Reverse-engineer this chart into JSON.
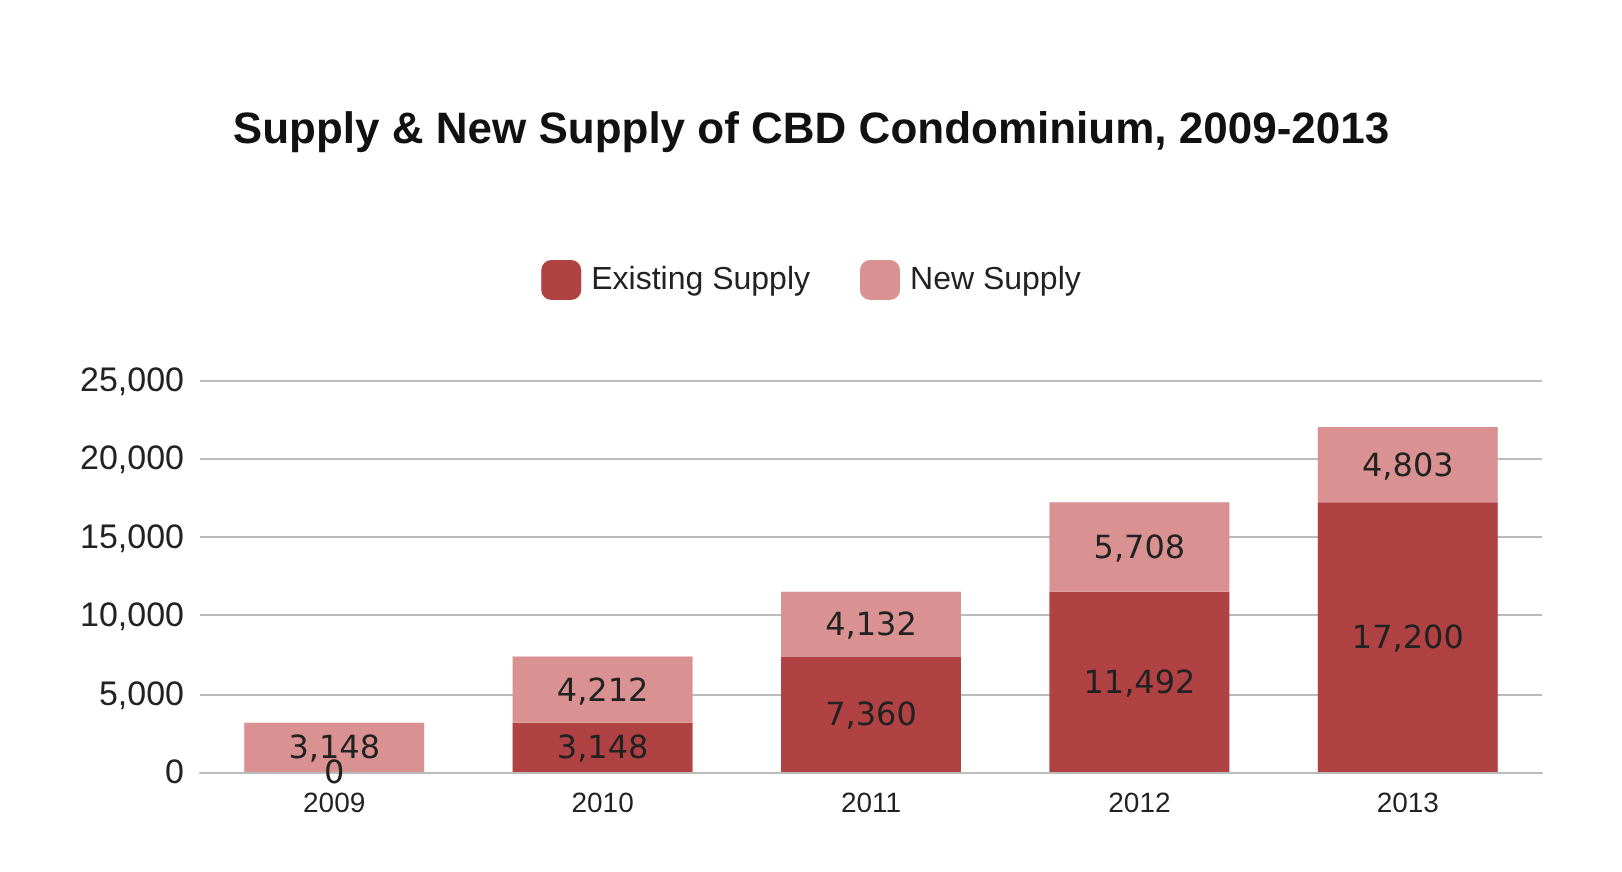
{
  "chart_data": {
    "type": "bar",
    "title": "Supply & New Supply of CBD Condominium, 2009-2013",
    "categories": [
      "2009",
      "2010",
      "2011",
      "2012",
      "2013"
    ],
    "stacked": true,
    "series": [
      {
        "name": "Existing Supply",
        "color": "#b04244",
        "values": [
          0,
          3148,
          7360,
          11492,
          17200
        ],
        "value_labels": [
          "0",
          "3,148",
          "7,360",
          "11,492",
          "17,200"
        ]
      },
      {
        "name": "New Supply",
        "color": "#d99291",
        "values": [
          3148,
          4212,
          4132,
          5708,
          4803
        ],
        "value_labels": [
          "3,148",
          "4,212",
          "4,132",
          "5,708",
          "4,803"
        ]
      }
    ],
    "ylim": [
      0,
      25000
    ],
    "yticks": [
      0,
      {
        "value": 5000,
        "label": "5,000"
      },
      {
        "value": 10000,
        "label": "10,000"
      },
      {
        "value": 15000,
        "label": "15,000"
      },
      {
        "value": 20000,
        "label": "20,000"
      },
      {
        "value": 25000,
        "label": "25,000"
      }
    ],
    "grid": "y",
    "legend": "top"
  }
}
